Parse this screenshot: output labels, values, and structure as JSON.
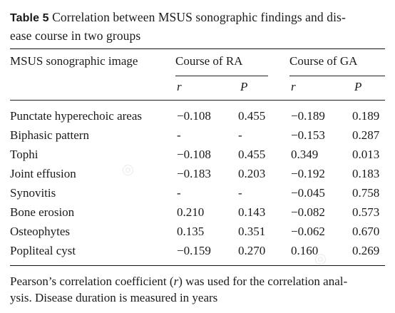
{
  "caption": {
    "label": "Table 5",
    "line1": "Correlation between MSUS sonographic findings and dis-",
    "line2": "ease course in two groups"
  },
  "table": {
    "header": {
      "col0": "MSUS sonographic image",
      "group_ra": "Course of RA",
      "group_ga": "Course of GA",
      "ra_r": "r",
      "ra_p": "P",
      "ga_r": "r",
      "ga_p": "P"
    },
    "rows": [
      {
        "name": "Punctate hyperechoic areas",
        "ra_r": "−0.108",
        "ra_p": "0.455",
        "ga_r": "−0.189",
        "ga_p": "0.189"
      },
      {
        "name": "Biphasic pattern",
        "ra_r": "-",
        "ra_p": "-",
        "ga_r": "−0.153",
        "ga_p": "0.287"
      },
      {
        "name": "Tophi",
        "ra_r": "−0.108",
        "ra_p": "0.455",
        "ga_r": "0.349",
        "ga_p": "0.013"
      },
      {
        "name": "Joint effusion",
        "ra_r": "−0.183",
        "ra_p": "0.203",
        "ga_r": "−0.192",
        "ga_p": "0.183"
      },
      {
        "name": "Synovitis",
        "ra_r": "-",
        "ra_p": "-",
        "ga_r": "−0.045",
        "ga_p": "0.758"
      },
      {
        "name": "Bone erosion",
        "ra_r": "0.210",
        "ra_p": "0.143",
        "ga_r": "−0.082",
        "ga_p": "0.573"
      },
      {
        "name": "Osteophytes",
        "ra_r": "0.135",
        "ra_p": "0.351",
        "ga_r": "−0.062",
        "ga_p": "0.670"
      },
      {
        "name": "Popliteal cyst",
        "ra_r": "−0.159",
        "ra_p": "0.270",
        "ga_r": "0.160",
        "ga_p": "0.269"
      }
    ]
  },
  "footnote": {
    "part1": "Pearson’s correlation coefficient (",
    "r": "r",
    "part2": ") was used for the correlation anal-",
    "line2": "ysis. Disease duration is measured in years"
  }
}
